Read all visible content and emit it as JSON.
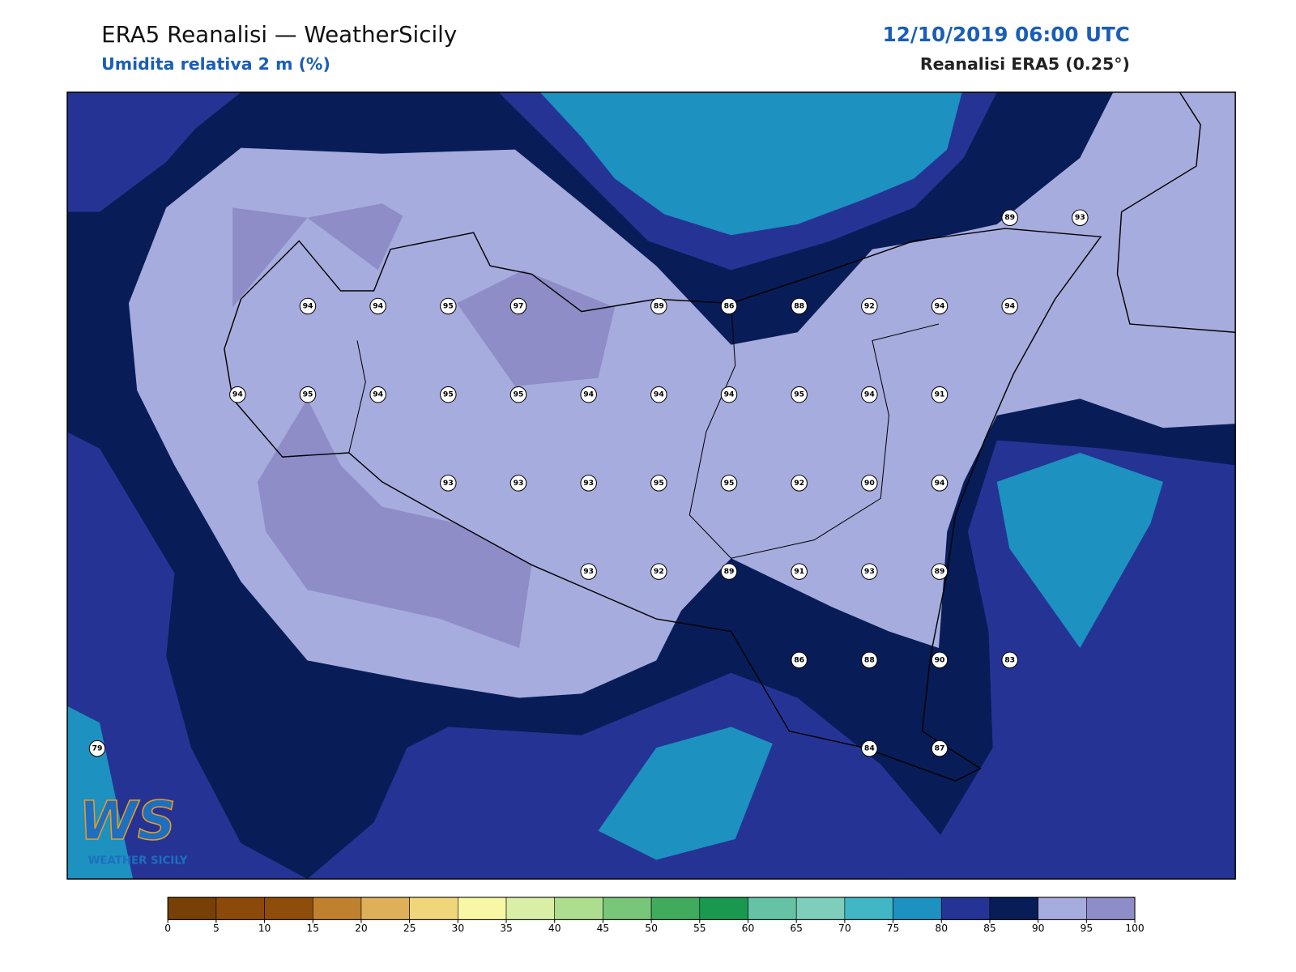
{
  "header": {
    "title": "ERA5 Reanalisi — WeatherSicily",
    "subtitle": "Umidita relativa 2 m (%)",
    "datetime": "12/10/2019 06:00 UTC",
    "source": "Reanalisi ERA5 (0.25°)"
  },
  "stations": {
    "rows": [
      [
        null,
        null,
        null,
        null,
        null,
        null,
        null,
        null,
        null,
        null,
        null,
        null,
        null,
        89,
        93
      ],
      [
        null,
        null,
        null,
        94,
        94,
        95,
        97,
        null,
        89,
        86,
        88,
        92,
        94,
        94,
        null
      ],
      [
        null,
        null,
        94,
        95,
        94,
        95,
        95,
        94,
        94,
        94,
        95,
        94,
        91,
        null,
        null
      ],
      [
        null,
        null,
        null,
        null,
        null,
        93,
        93,
        93,
        95,
        95,
        92,
        90,
        94,
        null,
        null
      ],
      [
        null,
        null,
        null,
        null,
        null,
        null,
        null,
        93,
        92,
        89,
        91,
        93,
        89,
        null,
        null
      ],
      [
        null,
        null,
        null,
        null,
        null,
        null,
        null,
        null,
        null,
        null,
        86,
        88,
        90,
        83,
        null
      ],
      [
        79,
        null,
        null,
        null,
        null,
        null,
        null,
        null,
        null,
        null,
        null,
        84,
        87,
        null,
        null
      ]
    ]
  },
  "colorbar": {
    "ticks": [
      0,
      5,
      10,
      15,
      20,
      25,
      30,
      35,
      40,
      45,
      50,
      55,
      60,
      65,
      70,
      75,
      80,
      85,
      90,
      95,
      100
    ],
    "colors": [
      "#774007",
      "#8c4a0a",
      "#8f4d0c",
      "#bf812d",
      "#dfb05a",
      "#f0d67a",
      "#f7f7a6",
      "#d9efa6",
      "#addd8e",
      "#78c679",
      "#41ab5d",
      "#1a9850",
      "#66c2a4",
      "#7fcdbb",
      "#41b6c4",
      "#1d91c0",
      "#253494",
      "#081d58",
      "#a6acdd",
      "#8e8dc8"
    ]
  },
  "logo": {
    "mark": "WS",
    "text": "WEATHER SICILY"
  }
}
